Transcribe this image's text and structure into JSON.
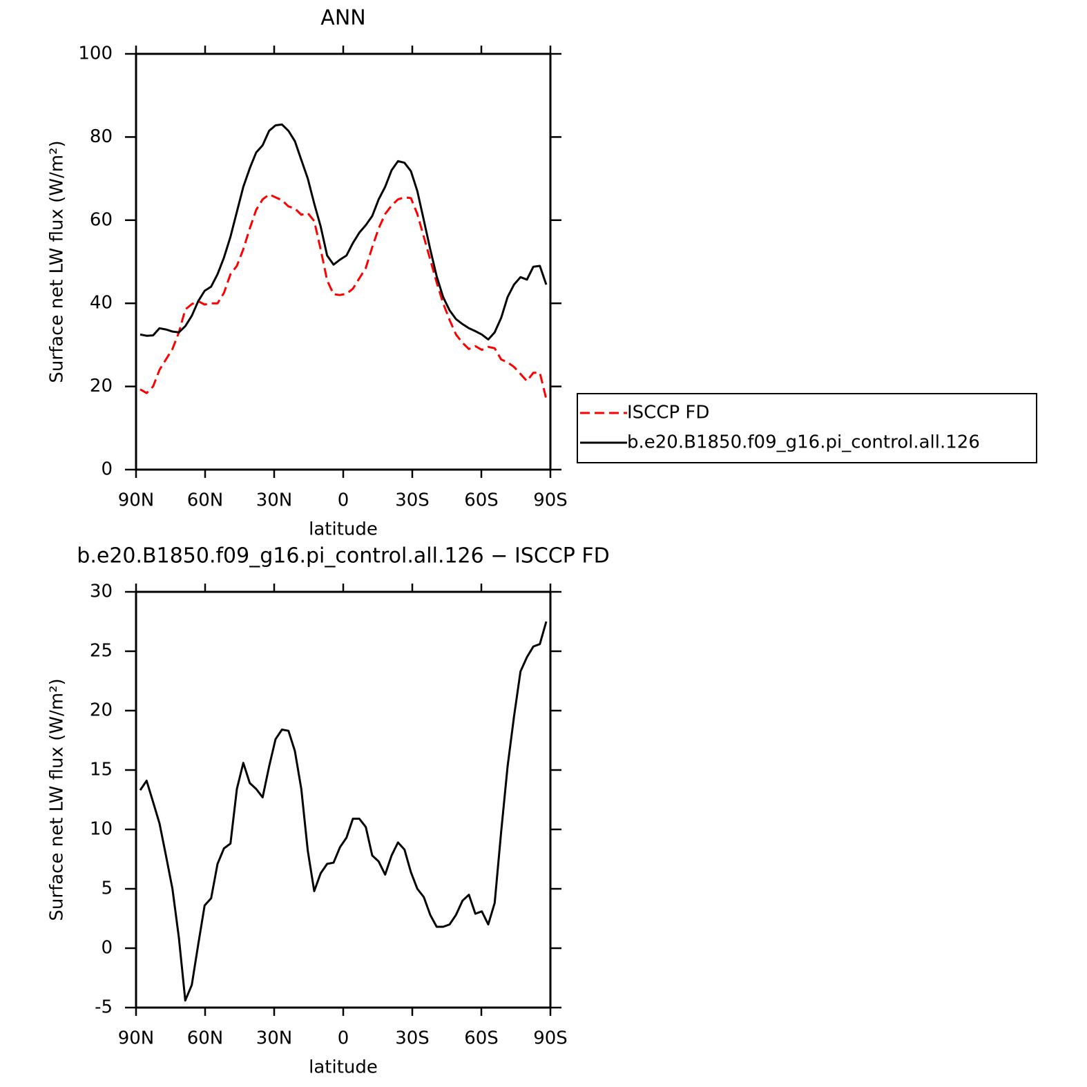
{
  "chart_data": [
    {
      "type": "line",
      "title": "ANN",
      "xlabel": "latitude",
      "ylabel": "Surface net LW flux (W/m²)",
      "x": [
        88.2,
        85.4,
        82.6,
        79.8,
        77,
        74.2,
        71.4,
        68.6,
        65.8,
        63,
        60.2,
        57.4,
        54.6,
        51.8,
        49,
        46.2,
        43.4,
        40.6,
        37.8,
        35,
        32.2,
        29.4,
        26.6,
        23.8,
        21,
        18.2,
        15.4,
        12.6,
        9.8,
        7,
        4.2,
        1.4,
        -1.4,
        -4.2,
        -7,
        -9.8,
        -12.6,
        -15.4,
        -18.2,
        -21,
        -23.8,
        -26.6,
        -29.4,
        -32.2,
        -35,
        -37.8,
        -40.6,
        -43.4,
        -46.2,
        -49,
        -51.8,
        -54.6,
        -57.4,
        -60.2,
        -63,
        -65.8,
        -68.6,
        -71.4,
        -74.2,
        -77,
        -79.8,
        -82.6,
        -85.4,
        -88.2
      ],
      "series": [
        {
          "name": "ISCCP FD",
          "color": "#ff0000",
          "line_style": "dashed",
          "values": [
            19.3,
            18.4,
            20,
            24,
            26.5,
            29,
            33,
            38.5,
            39.8,
            40.5,
            39.7,
            40,
            40,
            42.5,
            47,
            49,
            53,
            58,
            62.5,
            65,
            66.2,
            65.5,
            64.8,
            63.3,
            62.8,
            61.3,
            61.7,
            59.8,
            53,
            45.5,
            42.2,
            42,
            42.3,
            43.5,
            46,
            48.5,
            53.5,
            58,
            61.5,
            63.5,
            65,
            65.5,
            65.3,
            61.5,
            56,
            50.5,
            45,
            40,
            36,
            32.5,
            30.5,
            29,
            29.7,
            28.8,
            29.5,
            29.2,
            26.5,
            25.8,
            24.7,
            23,
            21.3,
            23.3,
            23.3,
            17
          ]
        },
        {
          "name": "b.e20.B1850.f09_g16.pi_control.all.126",
          "color": "#000000",
          "line_style": "solid",
          "values": [
            32.5,
            32.2,
            32.3,
            34,
            33.7,
            33.2,
            33,
            34.5,
            37,
            40.5,
            43,
            44,
            47,
            51,
            56,
            62,
            68,
            72.5,
            76.3,
            78,
            81.5,
            82.8,
            83,
            81.5,
            79,
            74.5,
            70,
            64,
            58.5,
            51.5,
            49.3,
            50.5,
            51.5,
            54.5,
            57,
            58.8,
            61,
            65,
            68,
            72,
            74.2,
            73.8,
            71.8,
            67,
            60,
            53,
            46.5,
            41.5,
            38.3,
            36.2,
            35,
            34,
            33.3,
            32.5,
            31.3,
            33,
            36.5,
            41.5,
            44.5,
            46.3,
            45.7,
            48.8,
            49,
            44.5
          ]
        }
      ],
      "xlim": [
        90,
        -90
      ],
      "xticks": [
        {
          "value": 90,
          "label": "90N"
        },
        {
          "value": 60,
          "label": "60N"
        },
        {
          "value": 30,
          "label": "30N"
        },
        0,
        {
          "value": -30,
          "label": "30S"
        },
        {
          "value": -60,
          "label": "60S"
        },
        {
          "value": -90,
          "label": "90S"
        }
      ],
      "ylim": [
        0,
        100
      ],
      "yticks": [
        0,
        20,
        40,
        60,
        80,
        100
      ],
      "legend": "right"
    },
    {
      "type": "line",
      "title": "b.e20.B1850.f09_g16.pi_control.all.126 − ISCCP FD",
      "xlabel": "latitude",
      "ylabel": "Surface net LW flux (W/m²)",
      "x": [
        88.2,
        85.4,
        82.6,
        79.8,
        77,
        74.2,
        71.4,
        68.6,
        65.8,
        63,
        60.2,
        57.4,
        54.6,
        51.8,
        49,
        46.2,
        43.4,
        40.6,
        37.8,
        35,
        32.2,
        29.4,
        26.6,
        23.8,
        21,
        18.2,
        15.4,
        12.6,
        9.8,
        7,
        4.2,
        1.4,
        -1.4,
        -4.2,
        -7,
        -9.8,
        -12.6,
        -15.4,
        -18.2,
        -21,
        -23.8,
        -26.6,
        -29.4,
        -32.2,
        -35,
        -37.8,
        -40.6,
        -43.4,
        -46.2,
        -49,
        -51.8,
        -54.6,
        -57.4,
        -60.2,
        -63,
        -65.8,
        -68.6,
        -71.4,
        -74.2,
        -77,
        -79.8,
        -82.6,
        -85.4,
        -88.2
      ],
      "color": "#000000",
      "values": [
        13.3,
        14.1,
        12.3,
        10.5,
        7.8,
        5,
        0.9,
        -4.4,
        -3.1,
        0.3,
        3.6,
        4.2,
        7.1,
        8.4,
        8.8,
        13.4,
        15.6,
        13.9,
        13.4,
        12.7,
        15.3,
        17.6,
        18.4,
        18.3,
        16.6,
        13.4,
        8.2,
        4.8,
        6.3,
        7.1,
        7.2,
        8.5,
        9.3,
        10.9,
        10.9,
        10.2,
        7.8,
        7.3,
        6.2,
        7.8,
        8.9,
        8.3,
        6.4,
        5,
        4.3,
        2.8,
        1.8,
        1.8,
        2,
        2.8,
        4,
        4.5,
        2.9,
        3.1,
        2,
        3.8,
        9.8,
        15.3,
        19.5,
        23.3,
        24.5,
        25.4,
        25.6,
        27.5
      ],
      "xlim": [
        90,
        -90
      ],
      "xticks": [
        {
          "value": 90,
          "label": "90N"
        },
        {
          "value": 60,
          "label": "60N"
        },
        {
          "value": 30,
          "label": "30N"
        },
        0,
        {
          "value": -30,
          "label": "30S"
        },
        {
          "value": -60,
          "label": "60S"
        },
        {
          "value": -90,
          "label": "90S"
        }
      ],
      "ylim": [
        -5,
        30
      ],
      "yticks": [
        -5,
        0,
        5,
        10,
        15,
        20,
        25,
        30
      ]
    }
  ]
}
